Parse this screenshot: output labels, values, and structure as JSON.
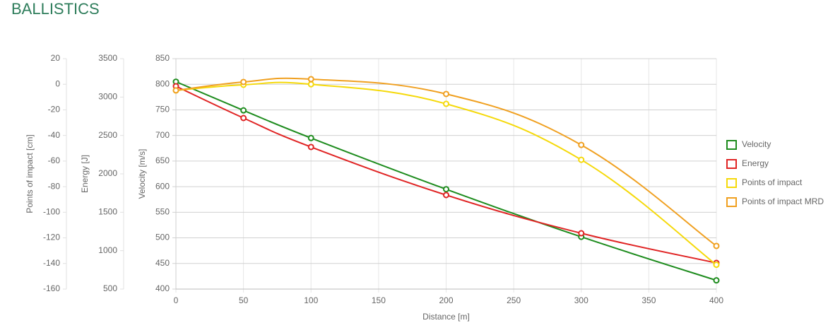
{
  "chart_data": {
    "type": "line",
    "title": "BALLISTICS",
    "x_label": "Distance [m]",
    "y_label": "Velocity [m/s]",
    "y2_label": "Energy [J]",
    "y3_label": "Points of impact [cm]",
    "x": [
      0,
      50,
      100,
      200,
      300,
      400
    ],
    "xlim": [
      0,
      400
    ],
    "xticks": [
      0,
      50,
      100,
      150,
      200,
      250,
      300,
      350,
      400
    ],
    "ylim": [
      400,
      850
    ],
    "yticks": [
      400,
      450,
      500,
      550,
      600,
      650,
      700,
      750,
      800,
      850
    ],
    "y2lim": [
      500,
      3500
    ],
    "y2ticks": [
      500,
      1000,
      1500,
      2000,
      2500,
      3000,
      3500
    ],
    "y3lim": [
      -160,
      20
    ],
    "y3ticks": [
      -160,
      -140,
      -120,
      -100,
      -80,
      -60,
      -40,
      -20,
      0,
      20
    ],
    "grid": true,
    "legend": "right",
    "series": [
      {
        "name": "Velocity",
        "color": "#1e8c1e",
        "values": [
          805,
          749,
          695,
          595,
          502,
          417
        ]
      },
      {
        "name": "Energy",
        "color": "#e02424",
        "axis": "y2",
        "values": [
          3141,
          2727,
          2350,
          1724,
          1227,
          840
        ]
      },
      {
        "name": "Points of impact",
        "color": "#f5d90a",
        "axis": "y3",
        "values": [
          -4.8,
          -0.4,
          0,
          -15.3,
          -59,
          -141
        ]
      },
      {
        "name": "Points of impact MRD",
        "color": "#f0a020",
        "axis": "y3",
        "values": [
          -4.8,
          1.8,
          4,
          -7.6,
          -47.4,
          -126.3
        ]
      }
    ]
  }
}
